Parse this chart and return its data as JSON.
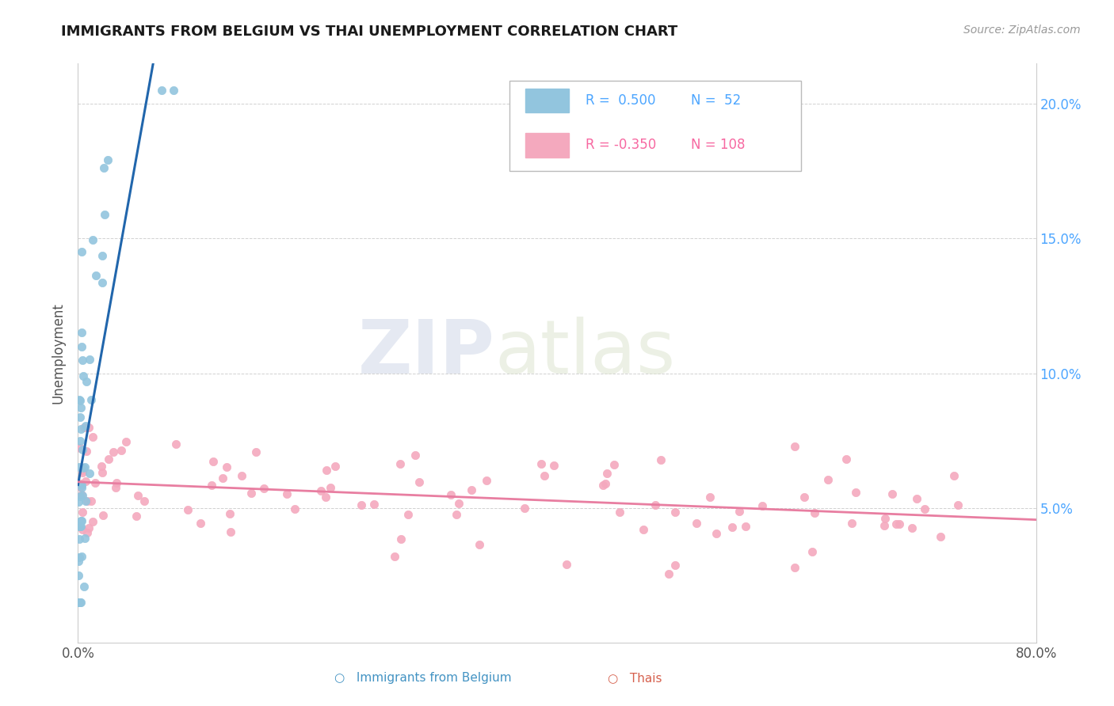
{
  "title": "IMMIGRANTS FROM BELGIUM VS THAI UNEMPLOYMENT CORRELATION CHART",
  "source_text": "Source: ZipAtlas.com",
  "ylabel": "Unemployment",
  "watermark_zip": "ZIP",
  "watermark_atlas": "atlas",
  "belgium_color": "#92c5de",
  "belgium_edge_color": "#4393c3",
  "thai_color": "#f4a9be",
  "thai_edge_color": "#d6604d",
  "trend_belgium_color": "#2166ac",
  "trend_thai_color": "#e87ea1",
  "xlim": [
    0.0,
    0.8
  ],
  "ylim": [
    0.0,
    0.215
  ],
  "xtick_positions": [
    0.0,
    0.1,
    0.2,
    0.3,
    0.4,
    0.5,
    0.6,
    0.7,
    0.8
  ],
  "xticklabels": [
    "0.0%",
    "",
    "",
    "",
    "",
    "",
    "",
    "",
    "80.0%"
  ],
  "ytick_positions": [
    0.0,
    0.05,
    0.1,
    0.15,
    0.2
  ],
  "yticklabels_right": [
    "",
    "5.0%",
    "10.0%",
    "15.0%",
    "20.0%"
  ],
  "right_tick_color": "#4da6ff",
  "legend_r_bel": "R =  0.500",
  "legend_n_bel": "N =  52",
  "legend_r_thai": "R = -0.350",
  "legend_n_thai": "N = 108",
  "legend_color_bel": "#4da6ff",
  "legend_color_thai": "#f768a1",
  "bottom_legend_bel": "Immigrants from Belgium",
  "bottom_legend_thai": "Thais"
}
